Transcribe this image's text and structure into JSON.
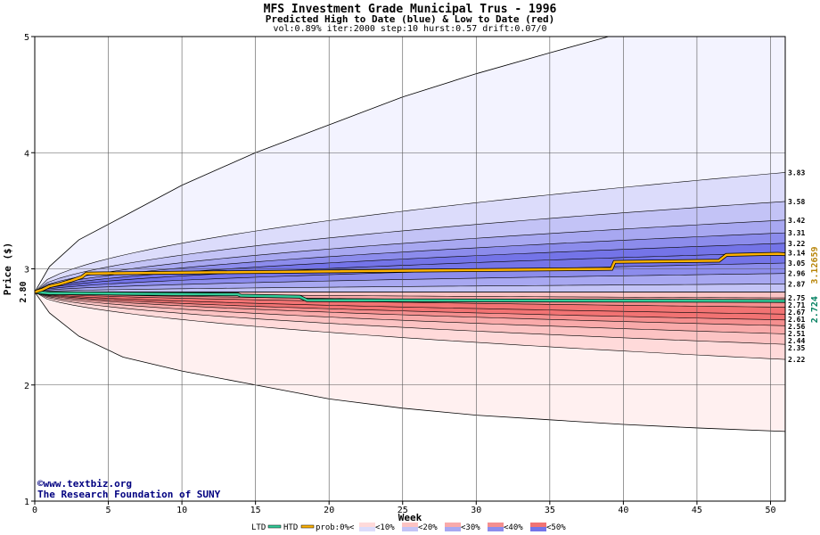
{
  "title": "MFS Investment Grade Municipal Trus - 1996",
  "subtitle": "Predicted High to Date (blue) &  Low to Date (red)",
  "params": "vol:0.89% iter:2000 step:10 hurst:0.57 drift:0.07/0",
  "credit_line1": "©www.textbiz.org",
  "credit_line2": "The Research Foundation of SUNY",
  "colors": {
    "ltd": "#33cc99",
    "htd": "#ffb300",
    "blue_bands": [
      "#f3f3ff",
      "#dcdcfb",
      "#c3c3f6",
      "#a8a8f1",
      "#8c8cec",
      "#7474e8"
    ],
    "red_bands": [
      "#fff0f0",
      "#ffdada",
      "#fcc3c3",
      "#f9aaaa",
      "#f58f8f",
      "#f27373"
    ]
  },
  "chart_data": {
    "type": "area",
    "xlabel": "Week",
    "ylabel": "Price ($)",
    "xlim": [
      0,
      51
    ],
    "ylim": [
      1,
      5
    ],
    "x_ticks": [
      0,
      5,
      10,
      15,
      20,
      25,
      30,
      35,
      40,
      45,
      50
    ],
    "y_ticks": [
      1,
      2,
      3,
      4,
      5
    ],
    "start_price": "2.80",
    "upper_band_ends": [
      "3.83",
      "3.58",
      "3.42",
      "3.31",
      "3.22",
      "3.14",
      "3.05",
      "2.96",
      "2.87"
    ],
    "lower_band_ends": [
      "2.75",
      "2.71",
      "2.67",
      "2.61",
      "2.56",
      "2.51",
      "2.44",
      "2.35",
      "2.22"
    ],
    "upper_band_values": [
      3.83,
      3.58,
      3.42,
      3.31,
      3.22,
      3.14,
      3.05,
      2.96,
      2.87
    ],
    "lower_band_values": [
      2.75,
      2.71,
      2.67,
      2.61,
      2.56,
      2.51,
      2.44,
      2.35,
      2.22
    ],
    "outer_high": {
      "x": [
        0,
        1,
        3,
        6,
        10,
        15,
        20,
        25,
        30,
        35,
        39
      ],
      "y": [
        2.8,
        3.02,
        3.25,
        3.45,
        3.72,
        4.0,
        4.24,
        4.48,
        4.68,
        4.86,
        5.0
      ]
    },
    "outer_low": {
      "x": [
        0,
        1,
        3,
        6,
        10,
        15,
        20,
        25,
        30,
        35,
        40,
        45,
        51
      ],
      "y": [
        2.8,
        2.62,
        2.42,
        2.24,
        2.12,
        2.0,
        1.88,
        1.8,
        1.74,
        1.7,
        1.66,
        1.63,
        1.6
      ]
    },
    "htd_value": "3.12659",
    "ltd_value": "2.724",
    "htd_line": {
      "x": [
        0,
        0.5,
        1,
        1.7,
        2.5,
        3.2,
        3.5,
        39.2,
        39.4,
        46.5,
        47,
        50.5,
        51
      ],
      "y": [
        2.8,
        2.82,
        2.85,
        2.87,
        2.9,
        2.93,
        2.96,
        3.0,
        3.06,
        3.07,
        3.12,
        3.13,
        3.126
      ]
    },
    "ltd_line": {
      "x": [
        0,
        1,
        3,
        7,
        13.8,
        14,
        18,
        18.5,
        51
      ],
      "y": [
        2.8,
        2.79,
        2.79,
        2.785,
        2.78,
        2.77,
        2.76,
        2.73,
        2.724
      ]
    },
    "legend": {
      "ltd": "LTD",
      "htd": "HTD",
      "prob": "prob:0%<",
      "bins": [
        "<10%",
        "<20%",
        "<30%",
        "<40%",
        "<50%"
      ]
    }
  }
}
